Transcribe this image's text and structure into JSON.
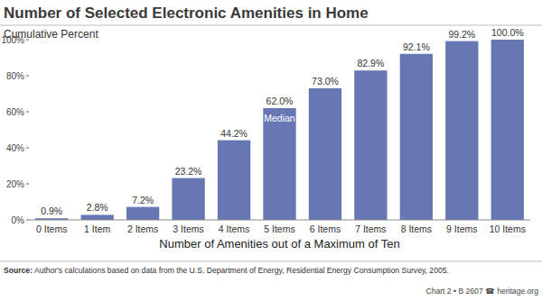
{
  "chart_data": {
    "type": "bar",
    "title": "Number of Selected Electronic Amenities in Home",
    "subtitle": "Cumulative Percent",
    "x_label": "Number of Amenities out of a Maximum of Ten",
    "categories": [
      "0 Items",
      "1 Item",
      "2 Items",
      "3 Items",
      "4 Items",
      "5 Items",
      "6 Items",
      "7 Items",
      "8 Items",
      "9 Items",
      "10 Items"
    ],
    "values": [
      0.9,
      2.8,
      7.2,
      23.2,
      44.2,
      62.0,
      73.0,
      82.9,
      92.1,
      99.2,
      100.0
    ],
    "value_labels": [
      "0.9%",
      "2.8%",
      "7.2%",
      "23.2%",
      "44.2%",
      "62.0%",
      "73.0%",
      "82.9%",
      "92.1%",
      "99.2%",
      "100.0%"
    ],
    "data_labels": true,
    "color": "#6677b4",
    "ylim": [
      0,
      100
    ],
    "yticks": [
      {
        "value": 0,
        "label": "0%"
      },
      {
        "value": 20,
        "label": "20%"
      },
      {
        "value": 40,
        "label": "40%"
      },
      {
        "value": 60,
        "label": "60%"
      },
      {
        "value": 80,
        "label": "80%"
      },
      {
        "value": 100,
        "label": "100%"
      }
    ],
    "grid": false,
    "annotations": [
      {
        "text": "Median",
        "x": "5 Items"
      }
    ],
    "source": "Source: Author's calculations based on data from the U.S. Department of Energy, Residential Energy Consumption Survey, 2005.",
    "credit": "Chart 2 • B 2607 ☎ heritage.org"
  }
}
